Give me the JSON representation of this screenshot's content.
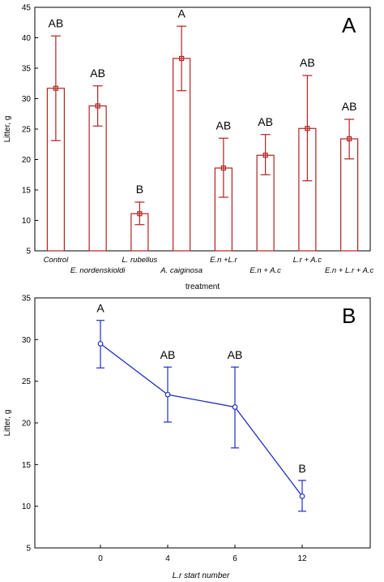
{
  "chart_data": [
    {
      "type": "bar",
      "panel_label": "A",
      "xlabel": "treatment",
      "ylabel": "Litter, g",
      "ylim": [
        5,
        45
      ],
      "yticks": [
        5,
        10,
        15,
        20,
        25,
        30,
        35,
        40,
        45
      ],
      "categories": [
        "Control",
        "E. nordenskioldi",
        "L. rubellus",
        "A. caiginosa",
        "E.n +L.r",
        "E.n + A.c",
        "L.r + A.c",
        "E.n + L.r + A.c"
      ],
      "values": [
        31.7,
        28.8,
        11.1,
        36.6,
        18.6,
        20.7,
        25.1,
        23.4
      ],
      "error_low": [
        23.1,
        25.5,
        9.3,
        31.3,
        13.8,
        17.5,
        16.5,
        20.1
      ],
      "error_high": [
        40.3,
        32.1,
        13.0,
        41.9,
        23.5,
        24.1,
        33.8,
        26.6
      ],
      "significance": [
        "AB",
        "AB",
        "B",
        "A",
        "AB",
        "AB",
        "AB",
        "AB"
      ],
      "color": "#b22222",
      "grid": false
    },
    {
      "type": "line",
      "panel_label": "B",
      "xlabel": "L.r start number",
      "ylabel": "Litter, g",
      "ylim": [
        5,
        35
      ],
      "yticks": [
        5,
        10,
        15,
        20,
        25,
        30,
        35
      ],
      "x": [
        "0",
        "4",
        "6",
        "12"
      ],
      "values": [
        29.5,
        23.4,
        21.9,
        11.2
      ],
      "error_low": [
        26.6,
        20.1,
        17.0,
        9.4
      ],
      "error_high": [
        32.3,
        26.7,
        26.7,
        13.1
      ],
      "significance": [
        "A",
        "AB",
        "AB",
        "B"
      ],
      "color": "#1f2fbf",
      "grid": false
    }
  ]
}
